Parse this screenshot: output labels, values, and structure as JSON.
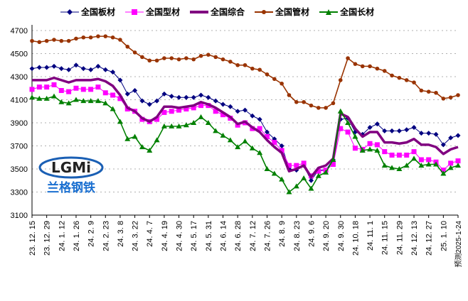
{
  "chart_data": {
    "type": "line",
    "title": "",
    "xlabel": "",
    "ylabel": "",
    "ylim": [
      3100,
      4700
    ],
    "yticks": [
      3100,
      3300,
      3500,
      3700,
      3900,
      4100,
      4300,
      4500,
      4700
    ],
    "grid": true,
    "legend_position": "top",
    "x_tick_labels": [
      "23. 12. 15",
      "23. 12. 29",
      "24. 1. 12",
      "24. 1. 26",
      "24. 2. 9",
      "24. 2. 23",
      "24. 3. 8",
      "24. 3. 22",
      "24. 4. 7",
      "24. 4. 19",
      "24. 4. 30",
      "24. 5. 17",
      "24. 5. 31",
      "24. 6. 14",
      "24. 6. 28",
      "24. 7. 12",
      "24. 7. 26",
      "24. 8. 9",
      "24. 8. 23",
      "24. 9. 6",
      "24. 9. 20",
      "24. 9. 30",
      "24. 10. 18",
      "24. 11. 1",
      "24. 11. 15",
      "24. 11. 29",
      "24. 12. 13",
      "24. 12. 27",
      "25. 1. 10",
      "预测2025-1-24"
    ],
    "series": [
      {
        "name": "全国板材",
        "color": "#000080",
        "marker": "diamond",
        "values": [
          4370,
          4380,
          4380,
          4390,
          4370,
          4360,
          4400,
          4370,
          4360,
          4390,
          4360,
          4340,
          4270,
          4150,
          4180,
          4090,
          4060,
          4090,
          4150,
          4130,
          4120,
          4120,
          4120,
          4140,
          4120,
          4090,
          4060,
          4040,
          4000,
          4010,
          3960,
          3930,
          3820,
          3760,
          3700,
          3500,
          3490,
          3530,
          3400,
          3490,
          3490,
          3580,
          3930,
          3940,
          3820,
          3800,
          3860,
          3890,
          3830,
          3830,
          3830,
          3840,
          3860,
          3810,
          3810,
          3800,
          3710,
          3770,
          3790
        ]
      },
      {
        "name": "全国型材",
        "color": "#FF00FF",
        "marker": "square",
        "values": [
          4190,
          4210,
          4210,
          4230,
          4180,
          4170,
          4200,
          4190,
          4190,
          4210,
          4160,
          4140,
          4110,
          4020,
          4000,
          3930,
          3910,
          3930,
          3990,
          4000,
          4010,
          4020,
          4030,
          4050,
          4050,
          4000,
          3970,
          3940,
          3880,
          3900,
          3850,
          3850,
          3780,
          3730,
          3660,
          3530,
          3530,
          3550,
          3440,
          3480,
          3490,
          3540,
          3850,
          3820,
          3680,
          3670,
          3720,
          3710,
          3650,
          3620,
          3620,
          3620,
          3650,
          3580,
          3580,
          3560,
          3490,
          3550,
          3570
        ]
      },
      {
        "name": "全国综合",
        "color": "#800080",
        "marker": "none",
        "values": [
          4270,
          4270,
          4270,
          4290,
          4270,
          4250,
          4270,
          4270,
          4270,
          4280,
          4260,
          4220,
          4140,
          4030,
          4000,
          3940,
          3910,
          3950,
          4040,
          4040,
          4030,
          4040,
          4050,
          4080,
          4060,
          4030,
          3990,
          3950,
          3890,
          3910,
          3860,
          3820,
          3750,
          3690,
          3640,
          3480,
          3500,
          3530,
          3430,
          3510,
          3530,
          3590,
          3980,
          3950,
          3850,
          3780,
          3820,
          3820,
          3730,
          3730,
          3720,
          3730,
          3760,
          3710,
          3710,
          3690,
          3630,
          3670,
          3690
        ]
      },
      {
        "name": "全国管材",
        "color": "#993300",
        "marker": "circle",
        "values": [
          4610,
          4600,
          4610,
          4620,
          4610,
          4610,
          4630,
          4640,
          4640,
          4650,
          4650,
          4640,
          4620,
          4560,
          4510,
          4470,
          4440,
          4440,
          4460,
          4460,
          4450,
          4460,
          4450,
          4480,
          4490,
          4470,
          4450,
          4430,
          4400,
          4400,
          4370,
          4360,
          4320,
          4280,
          4240,
          4140,
          4080,
          4080,
          4050,
          4030,
          4030,
          4070,
          4270,
          4460,
          4410,
          4390,
          4390,
          4370,
          4350,
          4310,
          4290,
          4270,
          4250,
          4180,
          4170,
          4160,
          4110,
          4120,
          4140
        ]
      },
      {
        "name": "全国长材",
        "color": "#008000",
        "marker": "triangle",
        "values": [
          4120,
          4110,
          4110,
          4130,
          4080,
          4070,
          4100,
          4090,
          4090,
          4090,
          4070,
          4020,
          3910,
          3760,
          3780,
          3690,
          3660,
          3750,
          3870,
          3870,
          3870,
          3880,
          3900,
          3950,
          3900,
          3830,
          3790,
          3750,
          3690,
          3740,
          3680,
          3640,
          3500,
          3460,
          3410,
          3300,
          3350,
          3420,
          3330,
          3440,
          3470,
          3580,
          4000,
          3900,
          3780,
          3660,
          3670,
          3660,
          3530,
          3510,
          3500,
          3530,
          3590,
          3530,
          3540,
          3540,
          3460,
          3510,
          3530
        ]
      }
    ]
  },
  "logo": {
    "mark": "LGMi",
    "name": "兰格钢铁"
  }
}
